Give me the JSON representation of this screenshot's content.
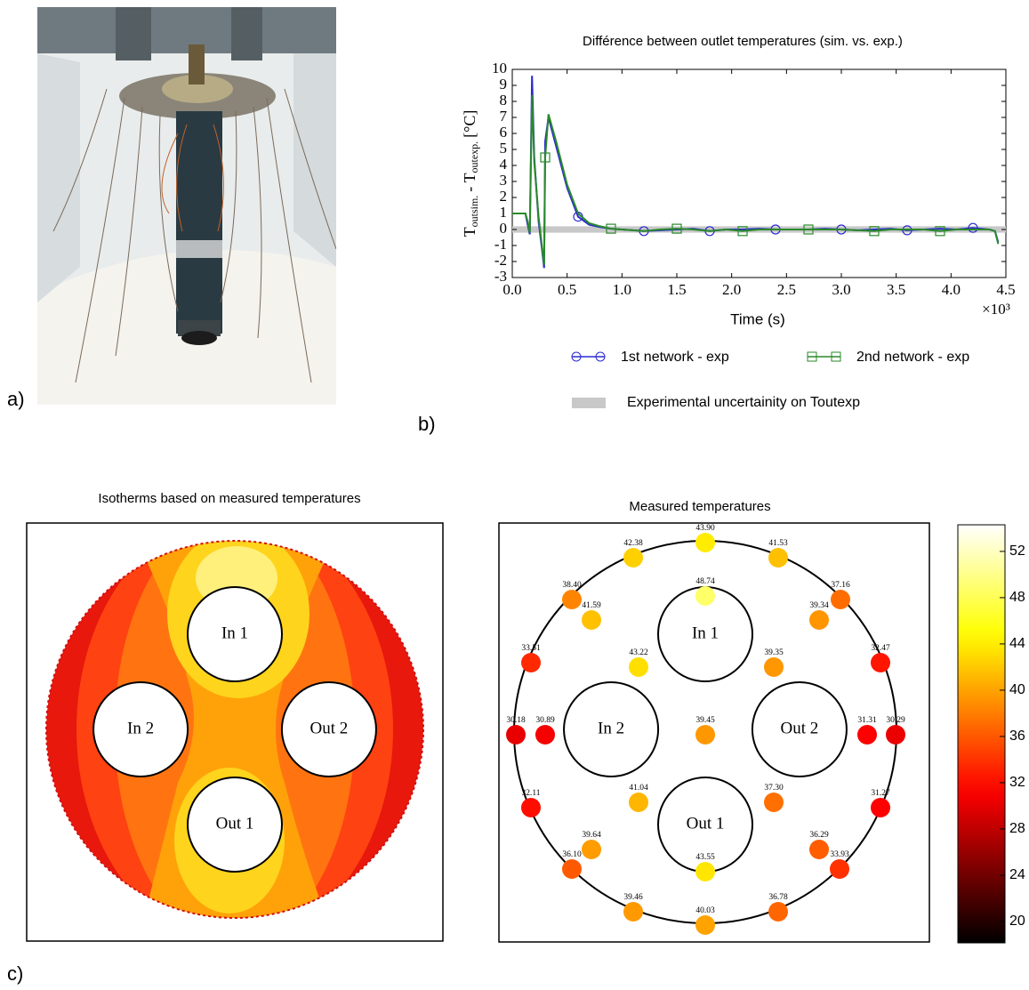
{
  "panel_labels": [
    "a)",
    "b)",
    "c)"
  ],
  "chart_data": [
    {
      "type": "line",
      "title": "Différence between outlet temperatures (sim. vs. exp.)",
      "xlabel": "Time (s)",
      "x_multiplier": "×10³",
      "ylabel": [
        "T",
        "outsim.",
        "- T",
        "outexp.",
        "[°C]"
      ],
      "x": [
        0,
        0.08,
        0.12,
        0.14,
        0.16,
        0.18,
        0.2,
        0.24,
        0.27,
        0.29,
        0.3,
        0.33,
        0.4,
        0.5,
        0.6,
        0.7,
        0.8,
        0.9,
        1.0,
        1.2,
        1.35,
        1.5,
        1.65,
        1.8,
        1.95,
        2.1,
        2.25,
        2.4,
        2.55,
        2.7,
        2.85,
        3.0,
        3.15,
        3.3,
        3.45,
        3.6,
        3.75,
        3.9,
        4.05,
        4.2,
        4.35,
        4.4,
        4.43
      ],
      "xlim": [
        0,
        4.5
      ],
      "xticks": [
        {
          "value": 0,
          "label": "0.0"
        },
        0.5,
        {
          "value": 1,
          "label": "1.0"
        },
        1.5,
        {
          "value": 2,
          "label": "2.0"
        },
        2.5,
        {
          "value": 3,
          "label": "3.0"
        },
        3.5,
        {
          "value": 4,
          "label": "4.0"
        },
        4.5
      ],
      "ylim": [
        -3,
        10
      ],
      "yticks": [
        -3,
        -2,
        -1,
        0,
        1,
        2,
        3,
        4,
        5,
        6,
        7,
        8,
        9,
        10
      ],
      "series": [
        {
          "name": "1st network - exp",
          "color": "#2b2bd0",
          "marker": "circle",
          "markers": [
            0.6,
            1.2,
            1.8,
            2.4,
            3.0,
            3.6,
            4.2
          ],
          "values": [
            1,
            1,
            1,
            0.3,
            -0.3,
            9.6,
            4.5,
            0.5,
            -1.2,
            -2.4,
            5.5,
            7.0,
            5.2,
            2.6,
            0.8,
            0.3,
            0.15,
            0.05,
            0,
            -0.1,
            -0.05,
            0,
            0.05,
            -0.1,
            0,
            0,
            0.05,
            0,
            0,
            0,
            0.05,
            0,
            -0.05,
            0,
            0.05,
            -0.05,
            0,
            0.05,
            0,
            0.1,
            0,
            -0.1,
            -0.8
          ]
        },
        {
          "name": "2nd network - exp",
          "color": "#2a8a2a",
          "marker": "square",
          "markers": [
            0.3,
            0.9,
            1.5,
            2.1,
            2.7,
            3.3,
            3.9
          ],
          "values": [
            1,
            1,
            1,
            0.5,
            -0.2,
            8.4,
            4.2,
            0.8,
            -1.0,
            -2.2,
            4.5,
            7.2,
            5.5,
            2.8,
            1.0,
            0.4,
            0.2,
            0.05,
            0,
            -0.1,
            0,
            0.05,
            0,
            -0.1,
            0,
            -0.1,
            0,
            0,
            0,
            0,
            0,
            0,
            -0.05,
            -0.1,
            0,
            0,
            0,
            -0.1,
            0,
            0,
            0,
            -0.1,
            -0.9
          ]
        }
      ],
      "band": {
        "name": "Experimental uncertainity on Toutexp",
        "color": "#c8c8c8",
        "lower": -0.2,
        "upper": 0.2
      }
    },
    {
      "type": "contour",
      "title": "Isotherms based on measured temperatures",
      "regions": [
        "In 1",
        "In 2",
        "Out 2",
        "Out 1"
      ]
    },
    {
      "type": "scatter",
      "title": "Measured temperatures",
      "regions": [
        "In 1",
        "In 2",
        "Out 2",
        "Out 1"
      ],
      "values": [
        43.9,
        48.74,
        42.38,
        41.53,
        38.4,
        37.16,
        41.59,
        39.34,
        33.51,
        32.47,
        43.22,
        39.35,
        30.18,
        30.89,
        39.45,
        31.31,
        30.29,
        41.04,
        37.3,
        32.11,
        31.27,
        39.64,
        36.29,
        36.1,
        33.93,
        43.55,
        39.46,
        36.78,
        40.03
      ],
      "value_labels": [
        "43.90",
        "48.74",
        "42.38",
        "41.53",
        "38.40",
        "37.16",
        "41.59",
        "39.34",
        "33.51",
        "32.47",
        "43.22",
        "39.35",
        "30.18",
        "30.89",
        "39.45",
        "31.31",
        "30.29",
        "41.04",
        "37.30",
        "32.11",
        "31.27",
        "39.64",
        "36.29",
        "36.10",
        "33.93",
        "43.55",
        "39.46",
        "36.78",
        "40.03"
      ],
      "cmap": "hot",
      "colorbar": {
        "lim": [
          18.15,
          54.3
        ],
        "ticks": [
          20,
          24,
          28,
          32,
          36,
          40,
          44,
          48,
          52
        ]
      }
    }
  ]
}
